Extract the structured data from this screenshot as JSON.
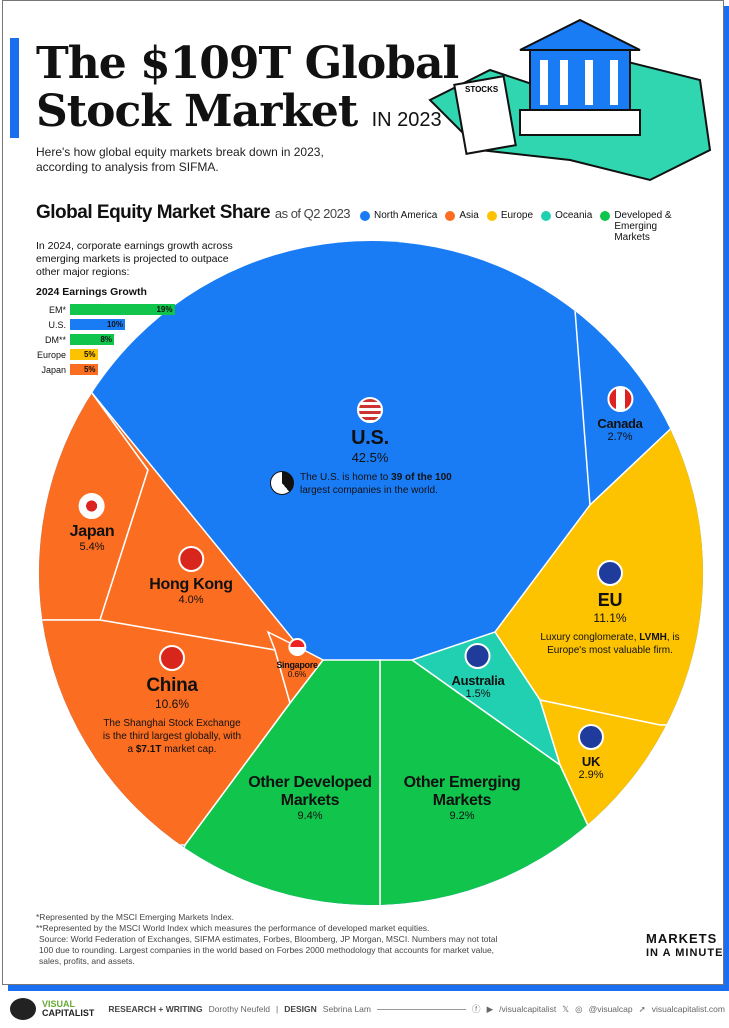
{
  "header": {
    "title_line1": "The $109T Global",
    "title_line2": "Stock Market",
    "title_suffix": "IN 2023",
    "subtitle": "Here's how global equity markets break down in 2023, according to analysis from SIFMA.",
    "illustration_sign": "STOCKS"
  },
  "section": {
    "title": "Global Equity Market Share",
    "suffix": "as of Q2 2023"
  },
  "legend": [
    {
      "label": "North America",
      "color": "#1a7cf5"
    },
    {
      "label": "Asia",
      "color": "#fb6d20"
    },
    {
      "label": "Europe",
      "color": "#fdc300"
    },
    {
      "label": "Oceania",
      "color": "#20d0b0"
    },
    {
      "label": "Developed & Emerging Markets",
      "color": "#10c44c"
    }
  ],
  "earnings": {
    "note": "In 2024, corporate earnings growth across emerging markets is projected to outpace other major regions:",
    "title": "2024 Earnings Growth",
    "rows": [
      {
        "label": "EM*",
        "value": 19,
        "text": "19%",
        "color": "#10c44c"
      },
      {
        "label": "U.S.",
        "value": 10,
        "text": "10%",
        "color": "#1a7cf5"
      },
      {
        "label": "DM**",
        "value": 8,
        "text": "8%",
        "color": "#10c44c"
      },
      {
        "label": "Europe",
        "value": 5,
        "text": "5%",
        "color": "#fdc300"
      },
      {
        "label": "Japan",
        "value": 5,
        "text": "5%",
        "color": "#fb6d20"
      }
    ]
  },
  "chart_data": {
    "type": "pie",
    "title": "Global Equity Market Share",
    "subtitle": "as of Q2 2023",
    "unit": "%",
    "slices": [
      {
        "name": "U.S.",
        "value": 42.5,
        "label": "42.5%",
        "group": "North America",
        "note_pre": "The U.S. is home to ",
        "note_bold": "39 of the 100",
        "note_post": " largest companies in the world."
      },
      {
        "name": "Canada",
        "value": 2.7,
        "label": "2.7%",
        "group": "North America"
      },
      {
        "name": "EU",
        "value": 11.1,
        "label": "11.1%",
        "group": "Europe",
        "note_pre": "Luxury conglomerate, ",
        "note_bold": "LVMH",
        "note_post": ", is Europe's most valuable firm."
      },
      {
        "name": "UK",
        "value": 2.9,
        "label": "2.9%",
        "group": "Europe"
      },
      {
        "name": "Australia",
        "value": 1.5,
        "label": "1.5%",
        "group": "Oceania"
      },
      {
        "name": "Other Emerging Markets",
        "value": 9.2,
        "label": "9.2%",
        "group": "Developed & Emerging Markets"
      },
      {
        "name": "Other Developed Markets",
        "value": 9.4,
        "label": "9.4%",
        "group": "Developed & Emerging Markets"
      },
      {
        "name": "China",
        "value": 10.6,
        "label": "10.6%",
        "group": "Asia",
        "note_pre": "The Shanghai Stock Exchange is the third largest globally, with a ",
        "note_bold": "$7.1T",
        "note_post": " market cap."
      },
      {
        "name": "Singapore",
        "value": 0.6,
        "label": "0.6%",
        "group": "Asia"
      },
      {
        "name": "Hong Kong",
        "value": 4.0,
        "label": "4.0%",
        "group": "Asia"
      },
      {
        "name": "Japan",
        "value": 5.4,
        "label": "5.4%",
        "group": "Asia"
      }
    ]
  },
  "footnotes": {
    "f1": "*Represented by the MSCI Emerging Markets Index.",
    "f2": "**Represented by the MSCI World Index which measures the performance of developed market equities.",
    "source": "Source: World Federation of Exchanges, SIFMA estimates, Forbes, Bloomberg, JP Morgan, MSCI. Numbers may not total 100 due to rounding. Largest companies in the world based on Forbes 2000 methodology that accounts for market value, sales, profits, and assets."
  },
  "badge": {
    "line1": "MARKETS",
    "line2": "IN A MINUTE"
  },
  "credits": {
    "brand1": "VISUAL",
    "brand2": "CAPITALIST",
    "research_label": "RESEARCH + WRITING",
    "research_name": "Dorothy Neufeld",
    "design_label": "DESIGN",
    "design_name": "Sebrina Lam",
    "social1": "/visualcapitalist",
    "social2": "@visualcap",
    "site": "visualcapitalist.com"
  }
}
